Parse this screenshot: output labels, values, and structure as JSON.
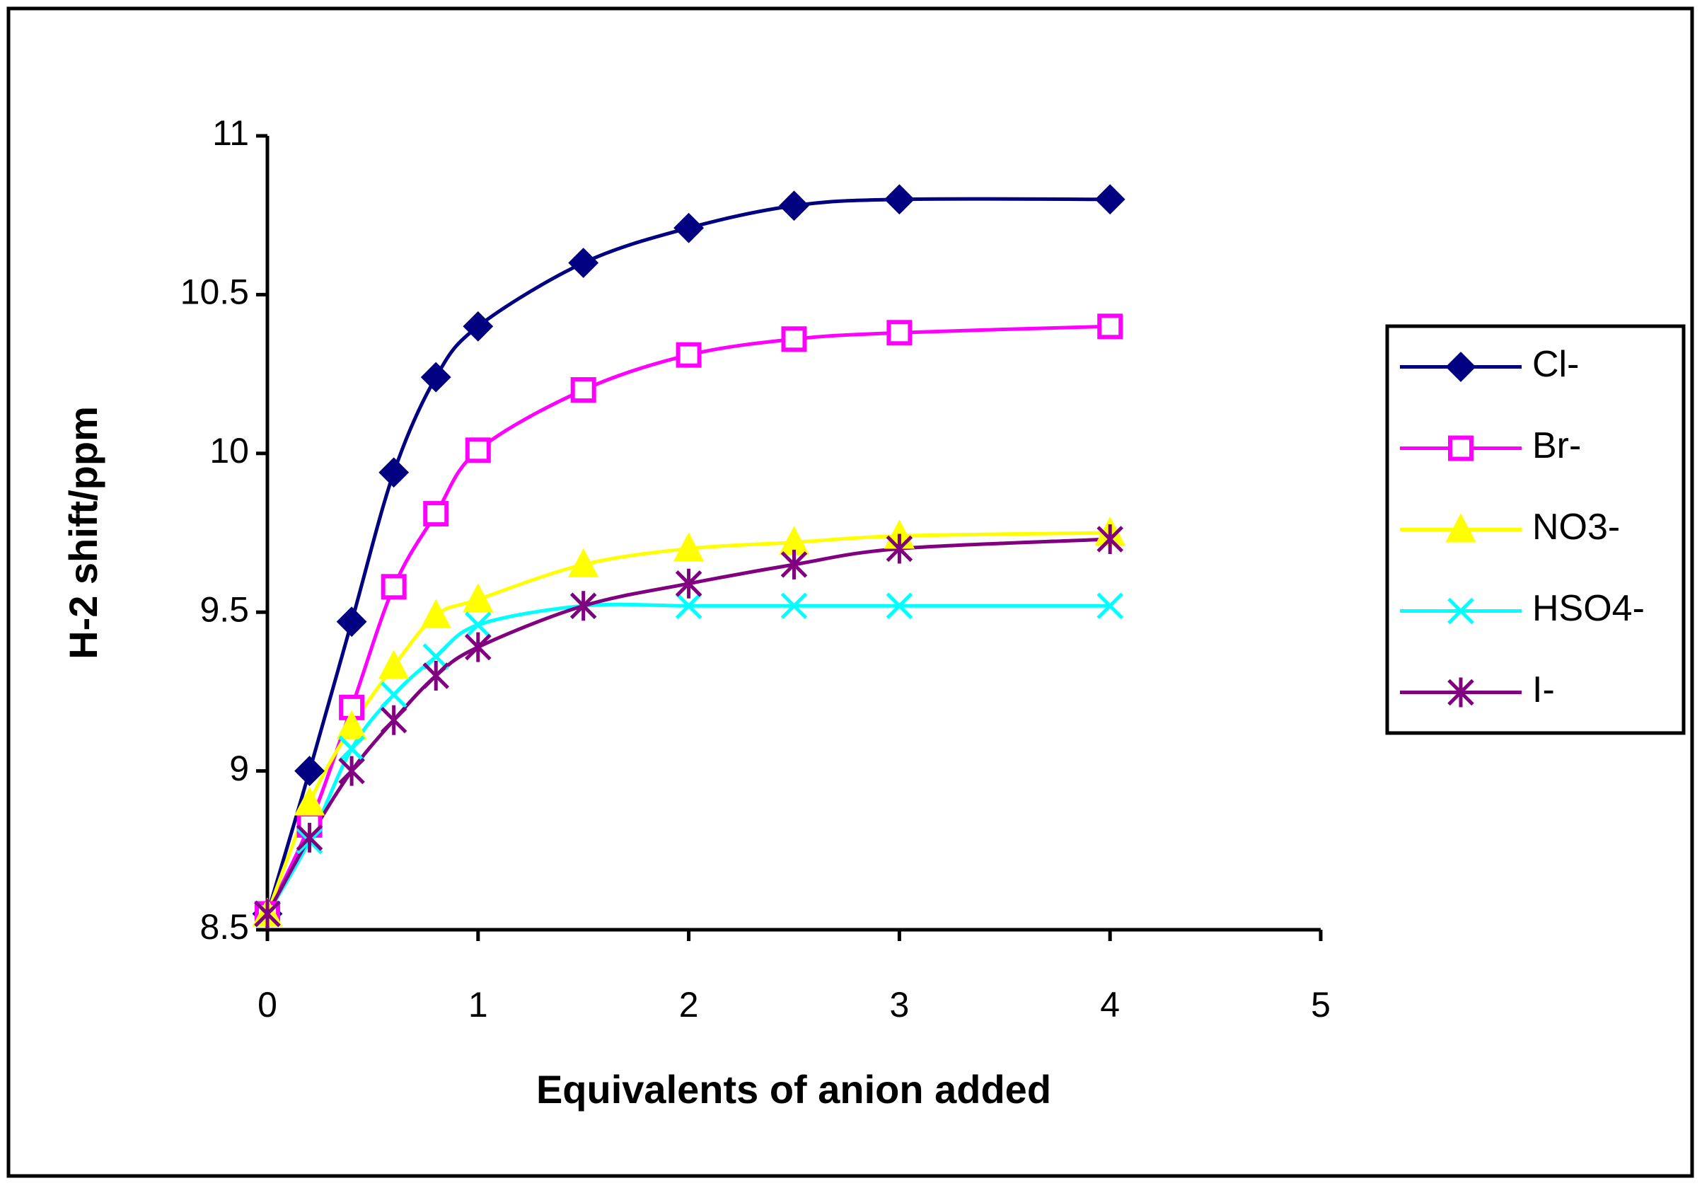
{
  "chart_data": {
    "type": "line",
    "xlabel": "Equivalents of anion added",
    "ylabel": "H-2 shift/ppm",
    "x": [
      0,
      0.2,
      0.4,
      0.6,
      0.8,
      1,
      1.5,
      2,
      2.5,
      3,
      4
    ],
    "series": [
      {
        "name": "Cl-",
        "color": "#000080",
        "marker": "diamond",
        "values": [
          8.55,
          9.0,
          9.47,
          9.94,
          10.24,
          10.4,
          10.6,
          10.71,
          10.78,
          10.8,
          10.8
        ]
      },
      {
        "name": "Br-",
        "color": "#ff00ff",
        "marker": "square",
        "values": [
          8.55,
          8.83,
          9.2,
          9.58,
          9.81,
          10.01,
          10.2,
          10.31,
          10.36,
          10.38,
          10.4
        ]
      },
      {
        "name": "NO3-",
        "color": "#ffff00",
        "marker": "triangle",
        "values": [
          8.55,
          8.9,
          9.14,
          9.33,
          9.49,
          9.54,
          9.65,
          9.7,
          9.72,
          9.74,
          9.75
        ]
      },
      {
        "name": "HSO4-",
        "color": "#00ffff",
        "marker": "x",
        "values": [
          8.55,
          8.78,
          9.07,
          9.24,
          9.36,
          9.46,
          9.52,
          9.52,
          9.52,
          9.52,
          9.52
        ]
      },
      {
        "name": "I-",
        "color": "#800080",
        "marker": "star",
        "values": [
          8.55,
          8.79,
          9.0,
          9.16,
          9.3,
          9.39,
          9.52,
          9.59,
          9.65,
          9.7,
          9.73
        ]
      }
    ],
    "xlim": [
      0,
      5
    ],
    "xticks": [
      0,
      1,
      2,
      3,
      4,
      5
    ],
    "ylim": [
      8.5,
      11
    ],
    "yticks": [
      8.5,
      9,
      9.5,
      10,
      10.5,
      11
    ],
    "legend": "right"
  }
}
